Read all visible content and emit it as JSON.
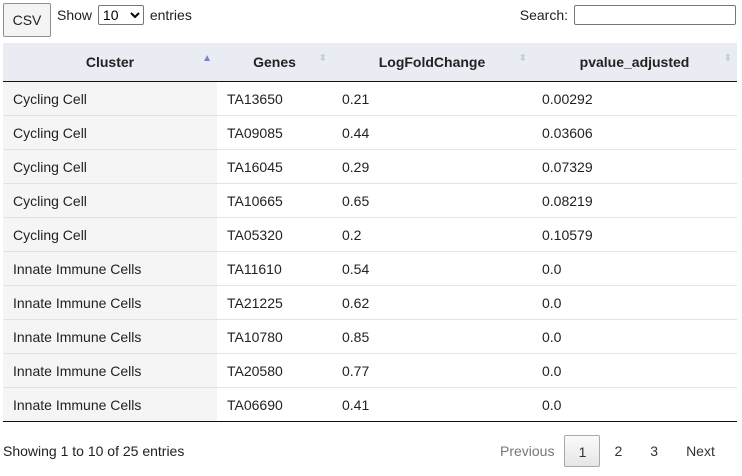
{
  "toolbar": {
    "csv_label": "CSV"
  },
  "length": {
    "show_label": "Show",
    "entries_label": "entries",
    "options": [
      "10"
    ],
    "selected": "10"
  },
  "search": {
    "label": "Search:",
    "value": "",
    "placeholder": ""
  },
  "table": {
    "columns": [
      {
        "label": "Cluster",
        "sorted": "asc"
      },
      {
        "label": "Genes",
        "sorted": "none"
      },
      {
        "label": "LogFoldChange",
        "sorted": "none"
      },
      {
        "label": "pvalue_adjusted",
        "sorted": "none"
      }
    ],
    "rows": [
      [
        "Cycling Cell",
        "TA13650",
        "0.21",
        "0.00292"
      ],
      [
        "Cycling Cell",
        "TA09085",
        "0.44",
        "0.03606"
      ],
      [
        "Cycling Cell",
        "TA16045",
        "0.29",
        "0.07329"
      ],
      [
        "Cycling Cell",
        "TA10665",
        "0.65",
        "0.08219"
      ],
      [
        "Cycling Cell",
        "TA05320",
        "0.2",
        "0.10579"
      ],
      [
        "Innate Immune Cells",
        "TA11610",
        "0.54",
        "0.0"
      ],
      [
        "Innate Immune Cells",
        "TA21225",
        "0.62",
        "0.0"
      ],
      [
        "Innate Immune Cells",
        "TA10780",
        "0.85",
        "0.0"
      ],
      [
        "Innate Immune Cells",
        "TA20580",
        "0.77",
        "0.0"
      ],
      [
        "Innate Immune Cells",
        "TA06690",
        "0.41",
        "0.0"
      ]
    ]
  },
  "info": {
    "text": "Showing 1 to 10 of 25 entries"
  },
  "pagination": {
    "previous": "Previous",
    "pages": [
      "1",
      "2",
      "3"
    ],
    "current": "1",
    "next": "Next"
  },
  "icons": {
    "sort_asc": "sort-asc-icon",
    "sort_both": "sort-both-icon"
  }
}
